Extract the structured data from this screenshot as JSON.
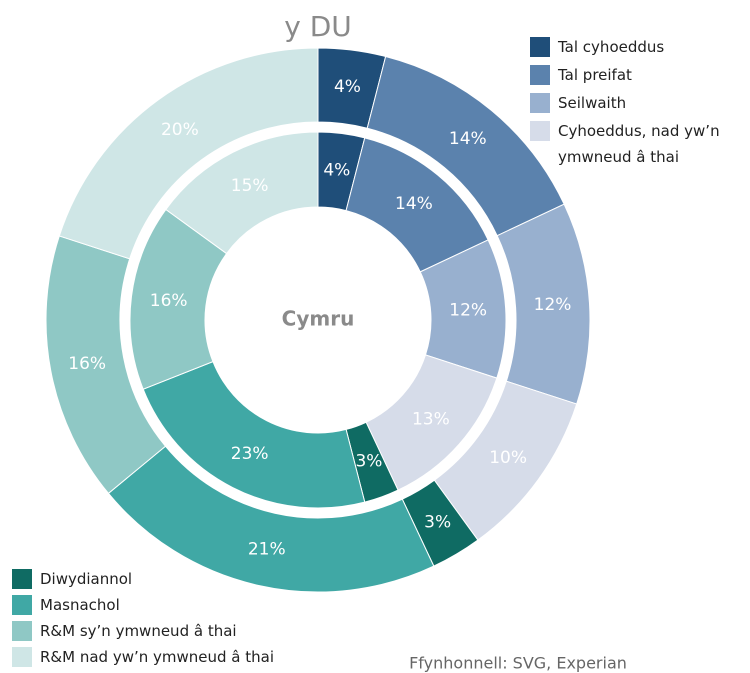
{
  "chart_data": {
    "type": "donut",
    "title": "y DU",
    "center_label": "Cymru",
    "source": "Ffynhonnell: SVG, Experian",
    "categories": [
      "Tal cyhoeddus",
      "Tal preifat",
      "Seilwaith",
      "Cyhoeddus, nad yw’n ymwneud â thai",
      "Diwydiannol",
      "Masnachol",
      "R&M sy’n ymwneud â thai",
      "R&M nad yw’n ymwneud â thai"
    ],
    "colors": [
      "#1f4e79",
      "#5b82ad",
      "#98b0cf",
      "#d6dce9",
      "#0f6b63",
      "#40a8a5",
      "#8fc8c5",
      "#cfe6e6"
    ],
    "series": [
      {
        "name": "y DU",
        "values": [
          4,
          14,
          12,
          10,
          3,
          21,
          16,
          20
        ],
        "value_labels": [
          "4%",
          "14%",
          "12%",
          "10%",
          "3%",
          "21%",
          "16%",
          "20%"
        ]
      },
      {
        "name": "Cymru",
        "values": [
          4,
          14,
          12,
          13,
          3,
          23,
          16,
          15
        ],
        "value_labels": [
          "4%",
          "14%",
          "12%",
          "13%",
          "3%",
          "23%",
          "16%",
          "15%"
        ]
      }
    ]
  }
}
